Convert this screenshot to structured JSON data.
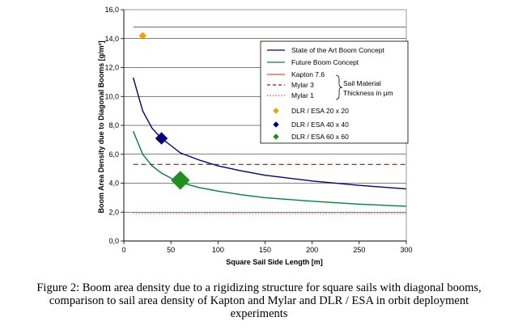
{
  "chart_data": {
    "type": "line",
    "xlabel": "Square Sail Side Length [m]",
    "ylabel": "Boom Area Density due to Diagonal Booms  [g/m²]",
    "xlim": [
      0,
      300
    ],
    "ylim": [
      0,
      16
    ],
    "x_ticks": [
      "0",
      "50",
      "100",
      "150",
      "200",
      "250",
      "300"
    ],
    "y_ticks": [
      "0,0",
      "2,0",
      "4,0",
      "6,0",
      "8,0",
      "10,0",
      "12,0",
      "14,0",
      "16,0"
    ],
    "grid": "horizontal",
    "legend_position": "right",
    "series": [
      {
        "name": "State of the Art Boom Concept",
        "style": "solid",
        "color": "#000080",
        "x": [
          10,
          20,
          30,
          40,
          50,
          60,
          80,
          100,
          125,
          150,
          200,
          250,
          300
        ],
        "y": [
          11.3,
          9.0,
          7.8,
          7.1,
          6.6,
          6.1,
          5.6,
          5.2,
          4.85,
          4.55,
          4.15,
          3.85,
          3.6
        ]
      },
      {
        "name": "Future Boom Concept",
        "style": "solid",
        "color": "#008040",
        "x": [
          10,
          20,
          30,
          40,
          50,
          60,
          80,
          100,
          125,
          150,
          200,
          250,
          300
        ],
        "y": [
          7.6,
          6.0,
          5.2,
          4.7,
          4.35,
          4.05,
          3.7,
          3.45,
          3.2,
          3.0,
          2.75,
          2.55,
          2.4
        ]
      },
      {
        "name": "Kapton 7.6",
        "style": "solid",
        "color": "#e05050",
        "x": [
          10,
          300
        ],
        "y": [
          14.8,
          14.8
        ]
      },
      {
        "name": "Mylar 3",
        "style": "dashed",
        "color": "#c00000",
        "x": [
          10,
          300
        ],
        "y": [
          5.3,
          5.3
        ]
      },
      {
        "name": "Mylar 1",
        "style": "dotted",
        "color": "#e05050",
        "x": [
          10,
          300
        ],
        "y": [
          1.9,
          1.9
        ]
      }
    ],
    "points": [
      {
        "name": "DLR / ESA 20 x 20",
        "x": 20,
        "y": 14.2,
        "color": "#f5a000",
        "size": "small"
      },
      {
        "name": "DLR / ESA 40 x 40",
        "x": 40,
        "y": 7.1,
        "color": "#00007a",
        "size": "medium"
      },
      {
        "name": "DLR / ESA 60 x 60",
        "x": 60,
        "y": 4.2,
        "color": "#1f8f1f",
        "size": "large"
      }
    ],
    "brace_label": [
      "Sail Material",
      "Thickness in μm"
    ]
  },
  "caption": {
    "line1": "Figure 2: Boom area density due to a rigidizing structure for square sails with diagonal booms,",
    "line2": "comparison to sail area density of Kapton and Mylar and DLR / ESA in orbit deployment",
    "line3": "experiments"
  }
}
